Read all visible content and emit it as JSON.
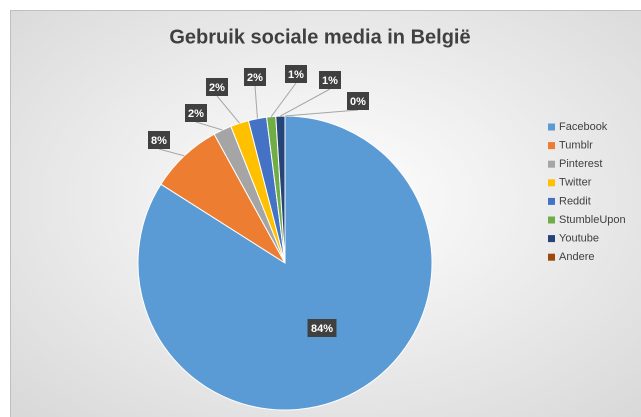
{
  "chart_data": {
    "type": "pie",
    "title": "Gebruik sociale media in België",
    "categories": [
      "Facebook",
      "Tumblr",
      "Pinterest",
      "Twitter",
      "Reddit",
      "StumbleUpon",
      "Youtube",
      "Andere"
    ],
    "values": [
      84,
      8,
      2,
      2,
      2,
      1,
      1,
      0
    ],
    "value_labels": [
      "84%",
      "8%",
      "2%",
      "2%",
      "2%",
      "1%",
      "1%",
      "0%"
    ],
    "colors": [
      "#5b9bd5",
      "#ed7d31",
      "#a5a5a5",
      "#ffc000",
      "#4472c4",
      "#70ad47",
      "#264478",
      "#9e480e"
    ],
    "legend": "right"
  }
}
